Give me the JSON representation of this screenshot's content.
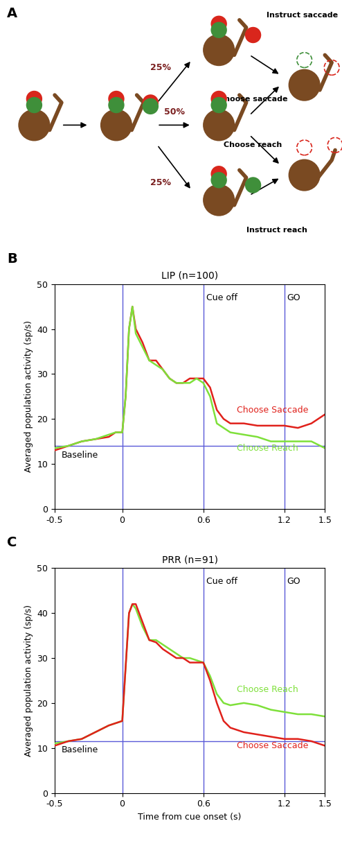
{
  "diagram": {
    "panel_label": "A",
    "branches": [
      "25%",
      "50%",
      "25%"
    ],
    "labels": {
      "instruct_saccade": "Instruct saccade",
      "choose_saccade": "Choose saccade",
      "choose_reach": "Choose reach",
      "instruct_reach": "Instruct reach"
    }
  },
  "chart_data": [
    {
      "type": "line",
      "panel_label": "B",
      "title": "LIP (n=100)",
      "y_label": "Averaged population activity (sp/s)",
      "xlim": [
        -0.5,
        1.5
      ],
      "ylim": [
        0,
        50
      ],
      "xticks": [
        -0.5,
        0,
        0.6,
        1.2,
        1.5
      ],
      "yticks": [
        0,
        10,
        20,
        30,
        40,
        50
      ],
      "vlines": [
        {
          "x": 0
        },
        {
          "x": 0.6,
          "label": "Cue off"
        },
        {
          "x": 1.2,
          "label": "GO"
        }
      ],
      "hline": {
        "y": 14,
        "label": "Baseline"
      },
      "x": [
        -0.5,
        -0.4,
        -0.3,
        -0.2,
        -0.1,
        -0.05,
        0,
        0.025,
        0.05,
        0.075,
        0.1,
        0.15,
        0.2,
        0.25,
        0.3,
        0.35,
        0.4,
        0.45,
        0.5,
        0.55,
        0.6,
        0.65,
        0.7,
        0.75,
        0.8,
        0.9,
        1.0,
        1.1,
        1.2,
        1.3,
        1.4,
        1.5
      ],
      "series": [
        {
          "name": "Choose Saccade",
          "color": "#e0211b",
          "values": [
            13,
            14,
            15,
            15.5,
            16,
            17,
            17,
            25,
            40,
            45,
            40,
            37,
            33,
            33,
            31,
            29,
            28,
            28,
            29,
            29,
            29,
            27,
            22,
            20,
            19,
            19,
            18.5,
            18.5,
            18.5,
            18,
            19,
            21
          ]
        },
        {
          "name": "Choose Reach",
          "color": "#7ee03a",
          "values": [
            13.5,
            14,
            15,
            15.5,
            16.5,
            17,
            17,
            25,
            40,
            45,
            39,
            36,
            33,
            32,
            31,
            29,
            28,
            28,
            28,
            29,
            28,
            25,
            19,
            18,
            17,
            16.5,
            16,
            15,
            15,
            15,
            15,
            13.5
          ]
        }
      ]
    },
    {
      "type": "line",
      "panel_label": "C",
      "title": "PRR (n=91)",
      "x_label": "Time from cue onset (s)",
      "y_label": "Averaged population activity (sp/s)",
      "xlim": [
        -0.5,
        1.5
      ],
      "ylim": [
        0,
        50
      ],
      "xticks": [
        -0.5,
        0,
        0.6,
        1.2,
        1.5
      ],
      "yticks": [
        0,
        10,
        20,
        30,
        40,
        50
      ],
      "vlines": [
        {
          "x": 0
        },
        {
          "x": 0.6,
          "label": "Cue off"
        },
        {
          "x": 1.2,
          "label": "GO"
        }
      ],
      "hline": {
        "y": 11.5,
        "label": "Baseline"
      },
      "x": [
        -0.5,
        -0.4,
        -0.3,
        -0.2,
        -0.1,
        -0.05,
        0,
        0.025,
        0.05,
        0.075,
        0.1,
        0.15,
        0.2,
        0.25,
        0.3,
        0.35,
        0.4,
        0.45,
        0.5,
        0.55,
        0.6,
        0.65,
        0.7,
        0.75,
        0.8,
        0.9,
        1.0,
        1.1,
        1.2,
        1.3,
        1.4,
        1.5
      ],
      "series": [
        {
          "name": "Choose Reach",
          "color": "#7ee03a",
          "values": [
            11,
            11.5,
            12,
            13.5,
            15,
            15.5,
            16,
            28,
            40,
            42,
            41,
            37,
            34,
            34,
            33,
            32,
            31,
            30,
            30,
            29.5,
            29,
            26,
            22,
            20,
            19.5,
            20,
            19.5,
            18.5,
            18,
            17.5,
            17.5,
            17
          ]
        },
        {
          "name": "Choose Saccade",
          "color": "#e0211b",
          "values": [
            10.5,
            11.5,
            12,
            13.5,
            15,
            15.5,
            16,
            28,
            40,
            42,
            42,
            38,
            34,
            33.5,
            32,
            31,
            30,
            30,
            29,
            29,
            29,
            25,
            20,
            16,
            14.5,
            13.5,
            13,
            12.5,
            12,
            12,
            11.5,
            10.5
          ]
        }
      ]
    }
  ]
}
